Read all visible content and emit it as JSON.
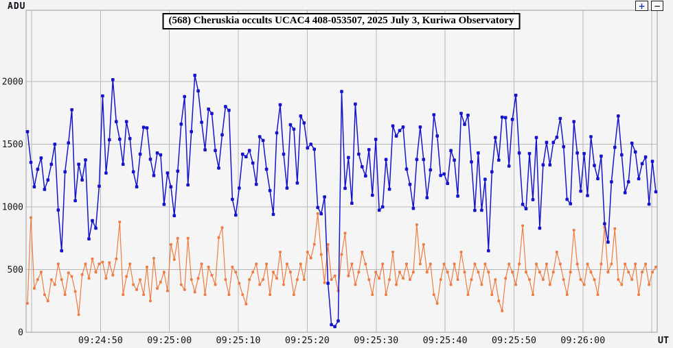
{
  "title_box": {
    "text": "(568) Cheruskia occults UCAC4 408-053507, 2025 July 3, Kuriwa Observatory"
  },
  "toolbar": {
    "zoom_in_label": "+",
    "zoom_out_label": "−"
  },
  "axis": {
    "y_unit_label": "ADU",
    "x_unit_label": "UT",
    "y_tick_labels": [
      "0",
      "500",
      "1000",
      "1500",
      "2000"
    ],
    "x_tick_labels": [
      "09:24:50",
      "09:25:00",
      "09:25:10",
      "09:25:20",
      "09:25:30",
      "09:25:40",
      "09:25:50",
      "09:26:00"
    ]
  },
  "chart_data": {
    "type": "line",
    "title": "(568) Cheruskia occults UCAC4 408-053507, 2025 July 3, Kuriwa Observatory",
    "xlabel": "UT",
    "ylabel": "ADU",
    "ylim": [
      0,
      2570
    ],
    "y_ticks": [
      0,
      500,
      1000,
      1500,
      2000
    ],
    "x_range": [
      "09:24:39",
      "09:26:10"
    ],
    "x_ticks": [
      "09:24:50",
      "09:25:00",
      "09:25:10",
      "09:25:20",
      "09:25:30",
      "09:25:40",
      "09:25:50",
      "09:26:00"
    ],
    "sample_interval_s": 0.5,
    "grid": true,
    "legend": false,
    "occultation_dip_time_approx": "09:25:23",
    "series": [
      {
        "name": "comparison-star-adu",
        "color": "#EF7C42",
        "marker": "square",
        "values": [
          230,
          915,
          350,
          420,
          480,
          300,
          250,
          420,
          380,
          545,
          420,
          300,
          475,
          445,
          325,
          140,
          460,
          545,
          430,
          585,
          480,
          545,
          560,
          430,
          555,
          455,
          585,
          880,
          300,
          445,
          545,
          380,
          340,
          420,
          300,
          520,
          250,
          590,
          350,
          400,
          480,
          330,
          700,
          580,
          750,
          380,
          340,
          750,
          420,
          320,
          430,
          545,
          300,
          520,
          455,
          380,
          755,
          835,
          420,
          300,
          520,
          480,
          390,
          300,
          225,
          420,
          480,
          545,
          380,
          420,
          545,
          300,
          480,
          430,
          640,
          380,
          545,
          480,
          300,
          420,
          545,
          420,
          640,
          592,
          701,
          947,
          620,
          395,
          700,
          420,
          450,
          330,
          620,
          790,
          450,
          545,
          380,
          480,
          640,
          545,
          420,
          300,
          480,
          430,
          545,
          300,
          420,
          640,
          380,
          480,
          430,
          545,
          420,
          480,
          858,
          545,
          700,
          480,
          545,
          300,
          230,
          420,
          545,
          480,
          380,
          545,
          420,
          640,
          480,
          300,
          420,
          545,
          480,
          380,
          545,
          480,
          300,
          420,
          250,
          170,
          430,
          545,
          480,
          380,
          545,
          850,
          480,
          420,
          300,
          545,
          480,
          420,
          545,
          380,
          480,
          640,
          545,
          420,
          300,
          480,
          814,
          545,
          420,
          380,
          545,
          480,
          420,
          300,
          545,
          838,
          480,
          545,
          826,
          420,
          380,
          545,
          480,
          420,
          545,
          300,
          480,
          545,
          380,
          480,
          520
        ]
      },
      {
        "name": "target-star-adu",
        "color": "#1414CC",
        "marker": "square",
        "values": [
          1600,
          1355,
          1160,
          1300,
          1390,
          1140,
          1215,
          1340,
          1500,
          975,
          650,
          1280,
          1510,
          1775,
          1050,
          1340,
          1215,
          1375,
          745,
          890,
          830,
          1165,
          1885,
          1270,
          1535,
          2015,
          1680,
          1540,
          1340,
          1680,
          1545,
          1280,
          1160,
          1420,
          1635,
          1630,
          1380,
          1250,
          1430,
          1415,
          1020,
          1270,
          1160,
          930,
          1285,
          1660,
          1880,
          1175,
          1600,
          2050,
          1925,
          1675,
          1455,
          1780,
          1745,
          1450,
          1310,
          1575,
          1800,
          1770,
          1060,
          935,
          1150,
          1420,
          1400,
          1450,
          1350,
          1180,
          1560,
          1530,
          1300,
          1130,
          940,
          1590,
          1815,
          1420,
          1150,
          1655,
          1620,
          1190,
          1725,
          1670,
          1470,
          1500,
          1460,
          995,
          945,
          1080,
          390,
          60,
          45,
          90,
          1920,
          1148,
          1394,
          1029,
          1820,
          1421,
          1320,
          1247,
          1457,
          1093,
          1539,
          974,
          1000,
          1378,
          1141,
          1646,
          1565,
          1609,
          1637,
          1301,
          1179,
          988,
          1378,
          1637,
          1378,
          1073,
          1295,
          1735,
          1566,
          1251,
          1263,
          1187,
          1449,
          1373,
          1086,
          1746,
          1658,
          1731,
          1359,
          972,
          1430,
          973,
          1220,
          650,
          1280,
          1553,
          1373,
          1716,
          1712,
          1325,
          1698,
          1890,
          1430,
          1020,
          985,
          1425,
          1058,
          1553,
          830,
          1335,
          1515,
          1335,
          1515,
          1555,
          1705,
          1480,
          1060,
          1025,
          1680,
          1430,
          1125,
          1425,
          1090,
          1560,
          1330,
          1225,
          1405,
          865,
          719,
          1200,
          1475,
          1725,
          1415,
          1113,
          1200,
          1508,
          1438,
          1224,
          1345,
          1398,
          1022,
          1363,
          1120
        ]
      }
    ],
    "plot_style": {
      "background": "#f5f5f5",
      "outer_background": "#f3f3f3",
      "grid_color": "#b8b8b8",
      "border_color": "#9c9c9c"
    }
  }
}
